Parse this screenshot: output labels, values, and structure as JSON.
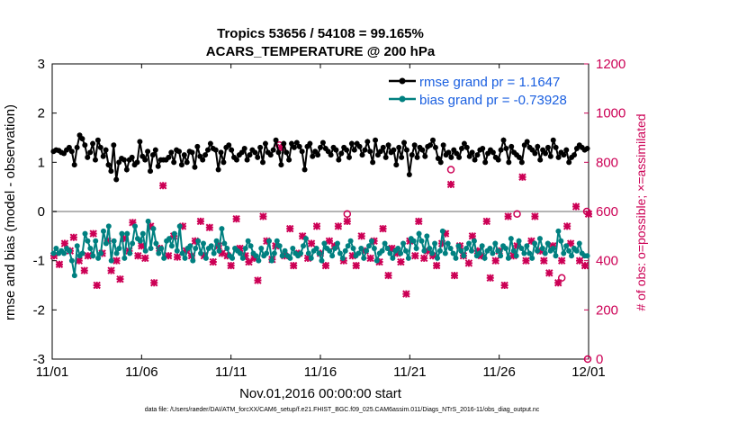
{
  "chart_data": {
    "type": "line",
    "title": "Tropics 53656 / 54108 = 99.165%",
    "subtitle": "ACARS_TEMPERATURE @ 200 hPa",
    "xlabel": "Nov.01,2016 00:00:00 start",
    "ylabel": "rmse and bias (model - observation)",
    "y2label": "# of obs: o=possible; ×=assimilated",
    "x_ticks": [
      "11/01",
      "11/06",
      "11/11",
      "11/16",
      "11/21",
      "11/26",
      "12/01"
    ],
    "ylim": [
      -3,
      3
    ],
    "y_ticks": [
      "-3",
      "-2",
      "-1",
      "0",
      "1",
      "2",
      "3"
    ],
    "y2lim": [
      0,
      1200
    ],
    "y2_ticks": [
      "0",
      "200",
      "400",
      "600",
      "800",
      "1000",
      "1200"
    ],
    "x_range_days": [
      0,
      30
    ],
    "legend_position": "top-right",
    "footer": "data file: /Users/raeder/DAI/ATM_forcXX/CAM6_setup/f.e21.FHIST_BGC.f09_025.CAM6assim.011/Diags_NTrS_2016-11/obs_diag_output.nc",
    "colors": {
      "rmse": "#000000",
      "bias": "#008080",
      "obs": "#cc0055",
      "zero_line": "#b4b4b4"
    },
    "series": [
      {
        "name": "rmse grand pr = 1.1647",
        "values": [
          1.22,
          1.25,
          1.24,
          1.2,
          1.18,
          1.25,
          1.3,
          1.22,
          0.95,
          1.3,
          1.55,
          1.48,
          1.35,
          1.1,
          1.2,
          1.38,
          1.05,
          1.45,
          1.3,
          1.12,
          1.25,
          0.95,
          0.82,
          1.35,
          0.65,
          1.0,
          1.08,
          1.05,
          0.85,
          1.05,
          1.1,
          0.95,
          1.0,
          1.42,
          1.12,
          1.05,
          1.22,
          0.82,
          1.15,
          1.25,
          0.92,
          1.05,
          1.05,
          1.05,
          1.1,
          1.2,
          1.0,
          1.25,
          1.22,
          0.95,
          1.15,
          1.0,
          1.22,
          1.2,
          0.9,
          1.32,
          1.12,
          1.05,
          1.15,
          1.25,
          1.38,
          1.28,
          1.25,
          0.85,
          1.2,
          1.0,
          1.3,
          1.35,
          1.25,
          1.1,
          1.05,
          1.15,
          1.2,
          1.28,
          1.05,
          1.15,
          1.25,
          1.2,
          1.1,
          1.3,
          1.0,
          1.38,
          1.2,
          1.15,
          1.25,
          1.45,
          1.2,
          0.95,
          1.38,
          1.2,
          1.05,
          1.38,
          1.3,
          1.4,
          1.32,
          1.22,
          0.85,
          1.32,
          1.38,
          1.12,
          1.22,
          1.15,
          1.3,
          1.4,
          1.28,
          1.22,
          1.15,
          1.3,
          1.25,
          1.05,
          1.18,
          1.3,
          1.25,
          1.1,
          1.38,
          1.25,
          1.38,
          1.32,
          1.15,
          1.25,
          1.42,
          1.22,
          1.0,
          1.45,
          1.15,
          1.22,
          1.3,
          1.1,
          1.35,
          1.2,
          1.25,
          0.95,
          1.3,
          1.1,
          1.4,
          1.25,
          0.75,
          1.15,
          1.35,
          1.1,
          1.3,
          1.25,
          1.12,
          1.32,
          1.35,
          1.45,
          1.3,
          1.08,
          1.0,
          1.35,
          1.15,
          1.2,
          1.1,
          1.25,
          1.18,
          1.1,
          1.28,
          1.38,
          1.3,
          1.12,
          1.2,
          1.05,
          1.15,
          1.25,
          1.28,
          1.0,
          1.18,
          1.25,
          1.2,
          1.1,
          1.05,
          1.25,
          1.45,
          1.28,
          1.0,
          1.32,
          1.2,
          1.15,
          1.1,
          1.0,
          1.35,
          1.42,
          1.3,
          1.25,
          1.18,
          1.32,
          1.05,
          1.25,
          1.18,
          1.3,
          1.12,
          1.45,
          1.3,
          1.1,
          1.2,
          1.15,
          1.25,
          1.0,
          1.1,
          1.15,
          1.28,
          1.35,
          1.3,
          1.25,
          1.28
        ]
      },
      {
        "name": "bias grand pr = -0.73928",
        "values": [
          -0.85,
          -0.75,
          -0.85,
          -0.8,
          -0.85,
          -0.75,
          -0.8,
          -1.0,
          -1.3,
          -0.7,
          -0.9,
          -0.85,
          -0.45,
          -0.6,
          -0.75,
          -0.9,
          -0.6,
          -0.95,
          -0.85,
          -0.4,
          -0.65,
          -0.3,
          -1.0,
          -0.6,
          -0.85,
          -0.75,
          -0.45,
          -0.95,
          -0.45,
          -0.85,
          -0.65,
          -0.3,
          -0.55,
          -0.6,
          -0.45,
          -0.8,
          -0.2,
          -0.75,
          -0.35,
          -0.65,
          -0.85,
          -0.75,
          -0.95,
          -0.6,
          -0.55,
          -0.7,
          -0.45,
          -0.8,
          -0.3,
          -0.85,
          -0.95,
          -0.75,
          -0.7,
          -1.0,
          -0.75,
          -0.6,
          -0.85,
          -0.65,
          -0.95,
          -0.75,
          -0.7,
          -0.85,
          -0.6,
          -0.8,
          -0.35,
          -0.65,
          -0.75,
          -0.9,
          -0.95,
          -0.75,
          -0.8,
          -0.85,
          -0.95,
          -0.75,
          -0.6,
          -0.7,
          -0.85,
          -0.9,
          -1.0,
          -0.75,
          -0.9,
          -0.85,
          -0.6,
          -1.0,
          -0.85,
          -0.6,
          -0.7,
          -0.9,
          -0.8,
          -0.9,
          -0.95,
          -0.75,
          -0.85,
          -0.9,
          -0.85,
          -0.7,
          -0.55,
          -0.85,
          -0.95,
          -0.8,
          -0.75,
          -0.85,
          -1.0,
          -0.65,
          -0.75,
          -0.8,
          -0.9,
          -0.75,
          -0.65,
          -0.85,
          -0.95,
          -0.8,
          -0.7,
          -0.6,
          -0.75,
          -0.9,
          -0.85,
          -0.75,
          -0.95,
          -0.8,
          -0.7,
          -0.6,
          -0.75,
          -1.0,
          -0.85,
          -0.8,
          -0.65,
          -0.75,
          -0.85,
          -0.95,
          -0.8,
          -0.75,
          -0.85,
          -0.65,
          -0.8,
          -0.95,
          -0.55,
          -0.6,
          -0.75,
          -0.45,
          -0.6,
          -0.8,
          -0.5,
          -0.75,
          -0.85,
          -0.65,
          -0.95,
          -0.8,
          -0.4,
          -0.85,
          -0.65,
          -0.75,
          -0.85,
          -0.95,
          -0.7,
          -0.8,
          -0.9,
          -0.75,
          -0.65,
          -0.8,
          -0.6,
          -0.9,
          -0.85,
          -0.7,
          -0.95,
          -0.8,
          -0.75,
          -0.85,
          -0.65,
          -0.8,
          -0.9,
          -0.7,
          -0.75,
          -0.95,
          -0.55,
          -0.8,
          -0.9,
          -0.6,
          -0.75,
          -0.85,
          -0.7,
          -0.85,
          -0.95,
          -0.65,
          -0.8,
          -0.55,
          -0.75,
          -0.85,
          -0.65,
          -0.8,
          -0.75,
          -0.9,
          -0.4,
          -0.6,
          -0.85,
          -0.7,
          -0.8,
          -0.9,
          -0.75,
          -0.8,
          -0.65,
          -0.85,
          -0.9,
          -0.9
        ]
      }
    ],
    "obs_assimilated": [
      {
        "t": 0.1,
        "n": 420
      },
      {
        "t": 0.4,
        "n": 385
      },
      {
        "t": 0.7,
        "n": 470
      },
      {
        "t": 1.0,
        "n": 440
      },
      {
        "t": 1.2,
        "n": 495
      },
      {
        "t": 1.5,
        "n": 400
      },
      {
        "t": 1.8,
        "n": 360
      },
      {
        "t": 2.0,
        "n": 420
      },
      {
        "t": 2.3,
        "n": 510
      },
      {
        "t": 2.5,
        "n": 300
      },
      {
        "t": 2.8,
        "n": 430
      },
      {
        "t": 3.1,
        "n": 480
      },
      {
        "t": 3.3,
        "n": 360
      },
      {
        "t": 3.6,
        "n": 400
      },
      {
        "t": 3.8,
        "n": 325
      },
      {
        "t": 4.0,
        "n": 490
      },
      {
        "t": 4.3,
        "n": 440
      },
      {
        "t": 4.5,
        "n": 555
      },
      {
        "t": 4.8,
        "n": 420
      },
      {
        "t": 5.0,
        "n": 460
      },
      {
        "t": 5.2,
        "n": 410
      },
      {
        "t": 5.5,
        "n": 540
      },
      {
        "t": 5.7,
        "n": 310
      },
      {
        "t": 6.0,
        "n": 450
      },
      {
        "t": 6.2,
        "n": 705
      },
      {
        "t": 6.5,
        "n": 420
      },
      {
        "t": 6.8,
        "n": 500
      },
      {
        "t": 7.0,
        "n": 415
      },
      {
        "t": 7.3,
        "n": 540
      },
      {
        "t": 7.5,
        "n": 440
      },
      {
        "t": 7.8,
        "n": 420
      },
      {
        "t": 8.0,
        "n": 480
      },
      {
        "t": 8.3,
        "n": 560
      },
      {
        "t": 8.5,
        "n": 420
      },
      {
        "t": 8.8,
        "n": 535
      },
      {
        "t": 9.0,
        "n": 395
      },
      {
        "t": 9.3,
        "n": 460
      },
      {
        "t": 9.5,
        "n": 430
      },
      {
        "t": 9.8,
        "n": 420
      },
      {
        "t": 10.0,
        "n": 380
      },
      {
        "t": 10.3,
        "n": 570
      },
      {
        "t": 10.5,
        "n": 450
      },
      {
        "t": 10.8,
        "n": 420
      },
      {
        "t": 11.0,
        "n": 395
      },
      {
        "t": 11.3,
        "n": 410
      },
      {
        "t": 11.5,
        "n": 320
      },
      {
        "t": 11.8,
        "n": 580
      },
      {
        "t": 12.0,
        "n": 480
      },
      {
        "t": 12.3,
        "n": 405
      },
      {
        "t": 12.5,
        "n": 460
      },
      {
        "t": 12.8,
        "n": 860
      },
      {
        "t": 13.0,
        "n": 420
      },
      {
        "t": 13.3,
        "n": 530
      },
      {
        "t": 13.5,
        "n": 380
      },
      {
        "t": 13.8,
        "n": 430
      },
      {
        "t": 14.0,
        "n": 500
      },
      {
        "t": 14.3,
        "n": 410
      },
      {
        "t": 14.5,
        "n": 470
      },
      {
        "t": 14.8,
        "n": 540
      },
      {
        "t": 15.0,
        "n": 430
      },
      {
        "t": 15.3,
        "n": 380
      },
      {
        "t": 15.5,
        "n": 480
      },
      {
        "t": 15.8,
        "n": 460
      },
      {
        "t": 16.0,
        "n": 540
      },
      {
        "t": 16.3,
        "n": 400
      },
      {
        "t": 16.5,
        "n": 560
      },
      {
        "t": 16.8,
        "n": 420
      },
      {
        "t": 17.0,
        "n": 380
      },
      {
        "t": 17.3,
        "n": 500
      },
      {
        "t": 17.5,
        "n": 440
      },
      {
        "t": 17.8,
        "n": 410
      },
      {
        "t": 18.0,
        "n": 480
      },
      {
        "t": 18.3,
        "n": 395
      },
      {
        "t": 18.5,
        "n": 530
      },
      {
        "t": 18.8,
        "n": 340
      },
      {
        "t": 19.0,
        "n": 450
      },
      {
        "t": 19.3,
        "n": 430
      },
      {
        "t": 19.5,
        "n": 395
      },
      {
        "t": 19.8,
        "n": 265
      },
      {
        "t": 20.0,
        "n": 480
      },
      {
        "t": 20.3,
        "n": 420
      },
      {
        "t": 20.5,
        "n": 560
      },
      {
        "t": 20.8,
        "n": 410
      },
      {
        "t": 21.0,
        "n": 440
      },
      {
        "t": 21.3,
        "n": 420
      },
      {
        "t": 21.5,
        "n": 380
      },
      {
        "t": 21.8,
        "n": 470
      },
      {
        "t": 22.0,
        "n": 510
      },
      {
        "t": 22.3,
        "n": 710
      },
      {
        "t": 22.5,
        "n": 340
      },
      {
        "t": 22.8,
        "n": 460
      },
      {
        "t": 23.0,
        "n": 420
      },
      {
        "t": 23.3,
        "n": 390
      },
      {
        "t": 23.5,
        "n": 500
      },
      {
        "t": 23.8,
        "n": 440
      },
      {
        "t": 24.0,
        "n": 420
      },
      {
        "t": 24.3,
        "n": 560
      },
      {
        "t": 24.5,
        "n": 330
      },
      {
        "t": 24.8,
        "n": 400
      },
      {
        "t": 25.0,
        "n": 440
      },
      {
        "t": 25.3,
        "n": 300
      },
      {
        "t": 25.5,
        "n": 580
      },
      {
        "t": 25.8,
        "n": 420
      },
      {
        "t": 26.0,
        "n": 460
      },
      {
        "t": 26.3,
        "n": 740
      },
      {
        "t": 26.5,
        "n": 400
      },
      {
        "t": 26.8,
        "n": 480
      },
      {
        "t": 27.0,
        "n": 580
      },
      {
        "t": 27.3,
        "n": 440
      },
      {
        "t": 27.5,
        "n": 400
      },
      {
        "t": 27.8,
        "n": 350
      },
      {
        "t": 28.0,
        "n": 460
      },
      {
        "t": 28.3,
        "n": 310
      },
      {
        "t": 28.5,
        "n": 400
      },
      {
        "t": 28.8,
        "n": 540
      },
      {
        "t": 29.0,
        "n": 470
      },
      {
        "t": 29.3,
        "n": 620
      },
      {
        "t": 29.5,
        "n": 400
      },
      {
        "t": 29.8,
        "n": 380
      },
      {
        "t": 30.0,
        "n": 590
      }
    ],
    "obs_possible": [
      {
        "t": 12.7,
        "n": 870
      },
      {
        "t": 16.5,
        "n": 590
      },
      {
        "t": 22.3,
        "n": 770
      },
      {
        "t": 26.0,
        "n": 590
      },
      {
        "t": 28.5,
        "n": 330
      },
      {
        "t": 29.9,
        "n": 600
      },
      {
        "t": 29.95,
        "n": 0
      }
    ]
  }
}
